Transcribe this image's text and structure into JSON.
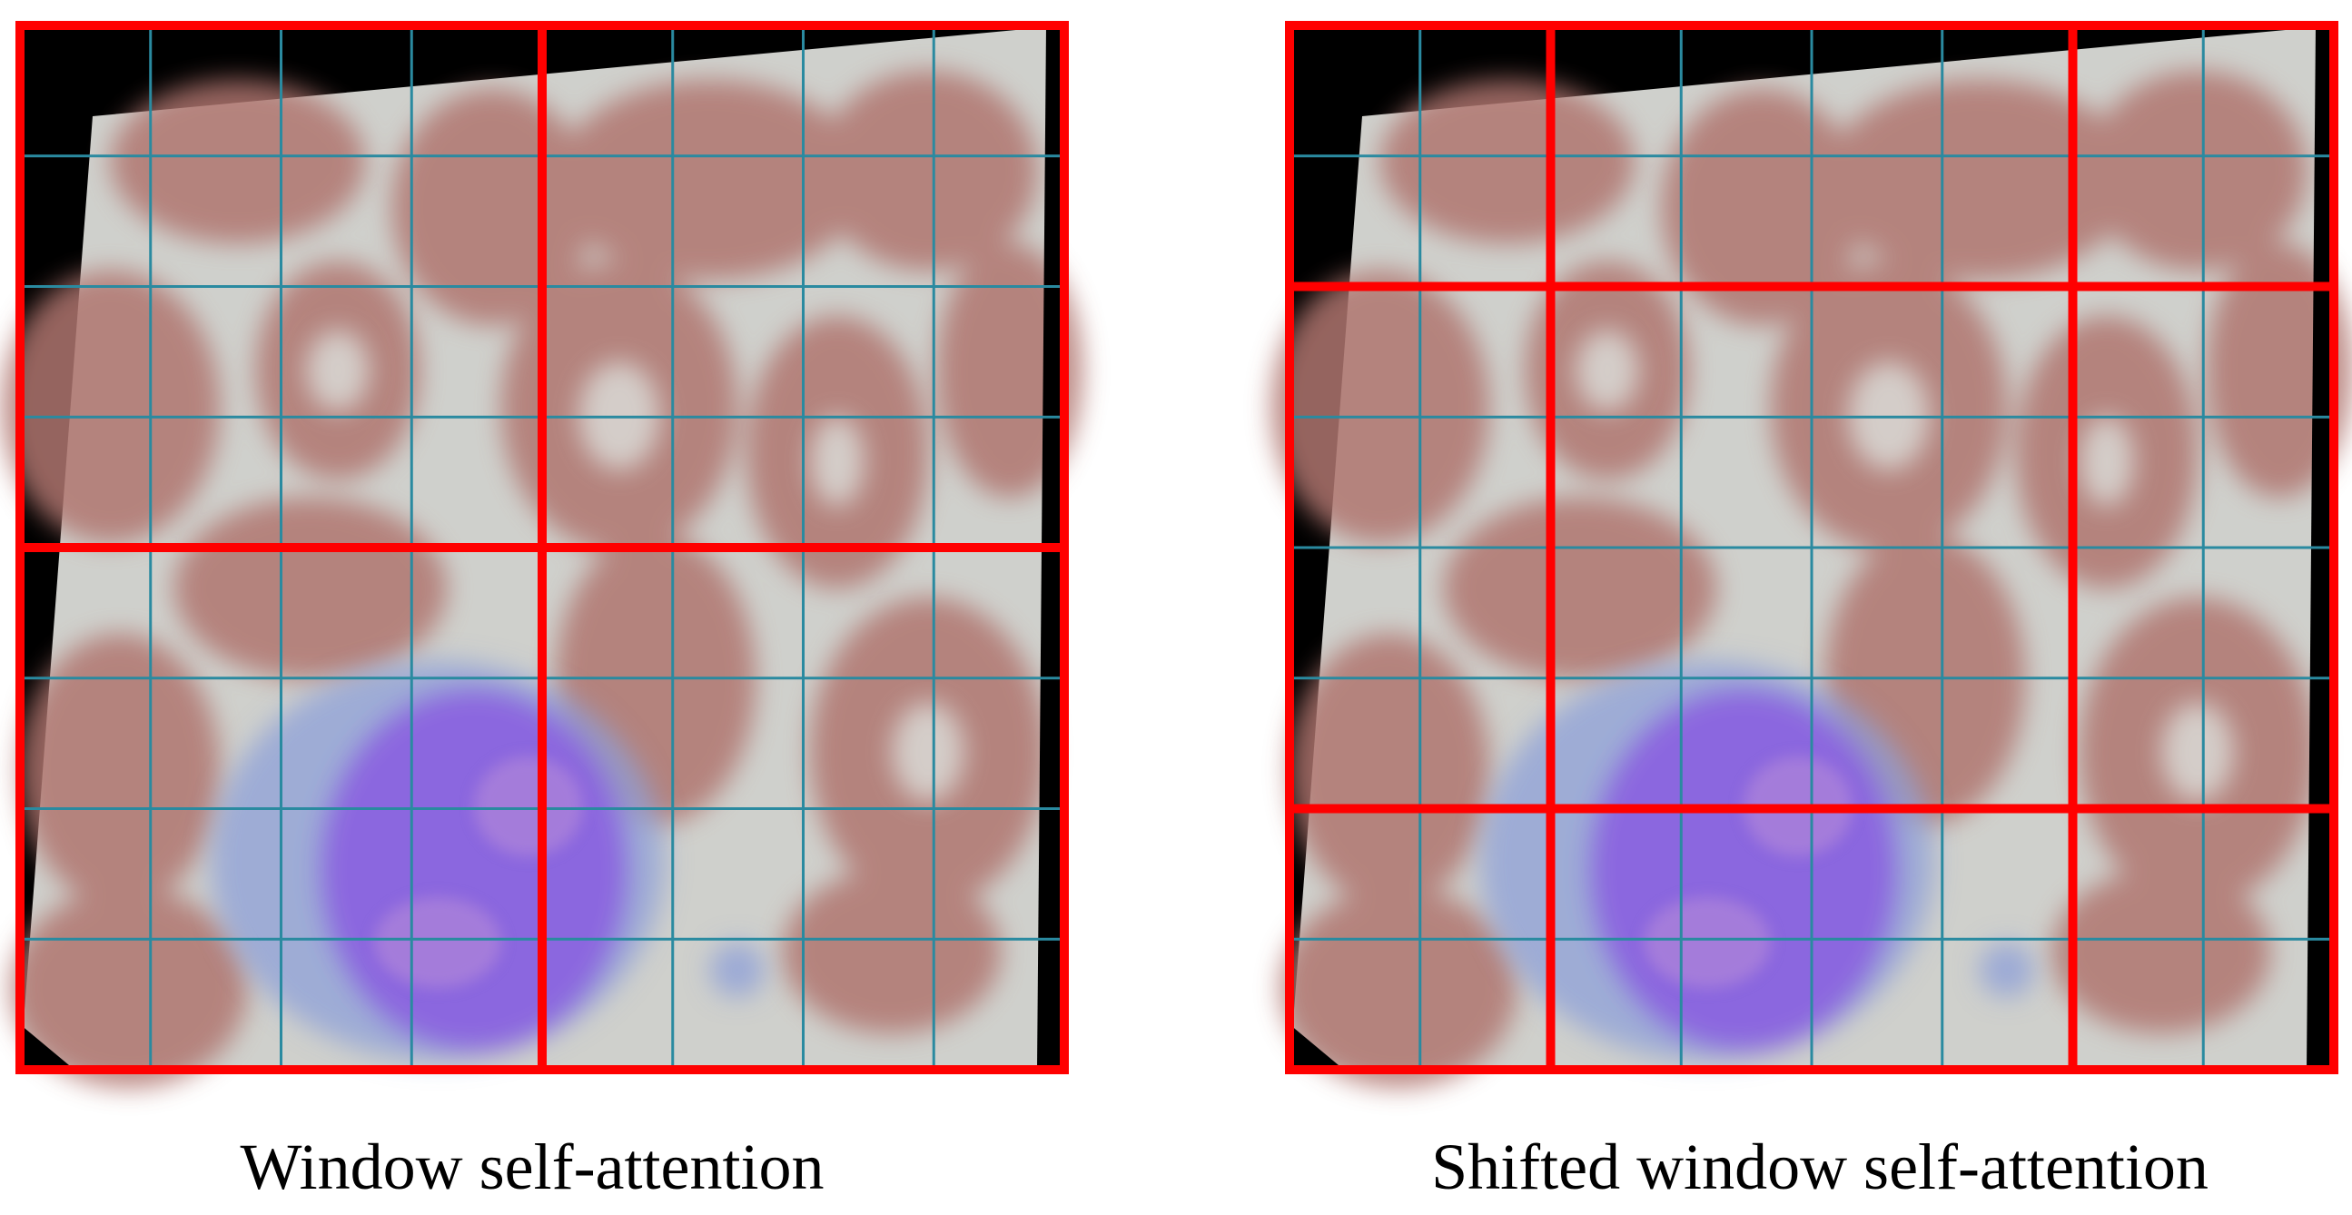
{
  "panels": [
    {
      "id": "window-self-attention",
      "caption": "Window self-attention",
      "patch_grid": 8,
      "window_boundaries_in_patches": [
        0,
        4,
        8
      ]
    },
    {
      "id": "shifted-window-self-attention",
      "caption": "Shifted window self-attention",
      "patch_grid": 8,
      "window_boundaries_in_patches": [
        0,
        2,
        6,
        8
      ]
    }
  ],
  "colors": {
    "window_border": "#ff0000",
    "patch_grid": "#2a8aa0",
    "background_fill": "#cfd0cc",
    "red_blood_cell": "#b07670",
    "white_blood_cell_nucleus": "#8a5fe0",
    "white_blood_cell_cytoplasm": "#8ea0d8",
    "corner_black": "#000000"
  }
}
